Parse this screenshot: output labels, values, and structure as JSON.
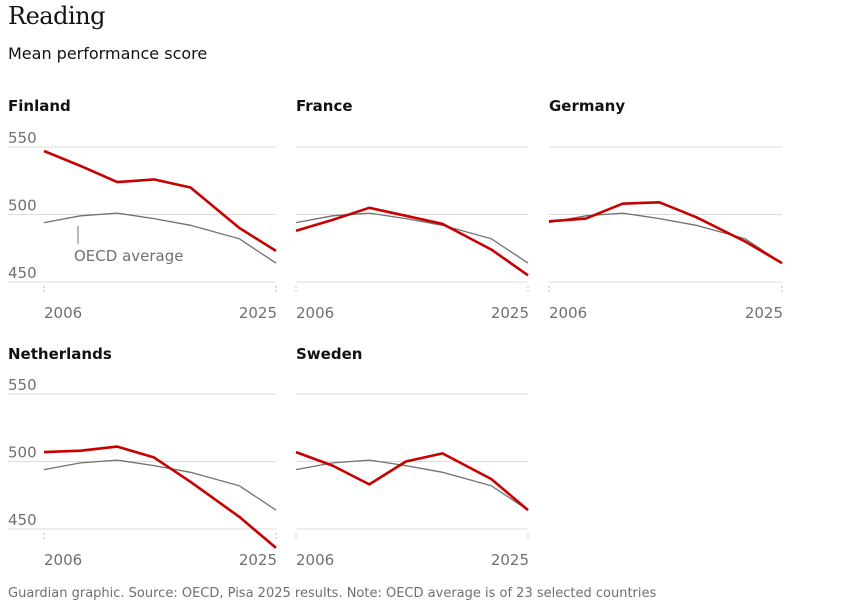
{
  "title": "Reading",
  "subtitle": "Mean performance score",
  "footer": "Guardian graphic. Source: OECD, Pisa 2025 results. Note: OECD average is of 23 selected countries",
  "colors": {
    "country": "#c70000",
    "average": "#707070",
    "grid": "#dcdcdc"
  },
  "chart_data": [
    {
      "type": "line",
      "title": "Finland",
      "x": [
        2006,
        2009,
        2012,
        2015,
        2018,
        2022,
        2025
      ],
      "ylim": [
        450,
        550
      ],
      "yticks": [
        550,
        500,
        450
      ],
      "xticks": [
        "2006",
        "2025"
      ],
      "annotation": "OECD average",
      "series": [
        {
          "name": "OECD average",
          "values": [
            494,
            499,
            501,
            497,
            492,
            482,
            464
          ]
        },
        {
          "values": [
            547,
            536,
            524,
            526,
            520,
            490,
            473
          ]
        }
      ]
    },
    {
      "type": "line",
      "title": "France",
      "x": [
        2006,
        2009,
        2012,
        2015,
        2018,
        2022,
        2025
      ],
      "ylim": [
        450,
        550
      ],
      "yticks": [
        550,
        500,
        450
      ],
      "xticks": [
        "2006",
        "2025"
      ],
      "series": [
        {
          "name": "OECD average",
          "values": [
            494,
            499,
            501,
            497,
            492,
            482,
            464
          ]
        },
        {
          "values": [
            488,
            496,
            505,
            499,
            493,
            474,
            455
          ]
        }
      ]
    },
    {
      "type": "line",
      "title": "Germany",
      "x": [
        2006,
        2009,
        2012,
        2015,
        2018,
        2022,
        2025
      ],
      "ylim": [
        450,
        550
      ],
      "yticks": [
        550,
        500,
        450
      ],
      "xticks": [
        "2006",
        "2025"
      ],
      "series": [
        {
          "name": "OECD average",
          "values": [
            494,
            499,
            501,
            497,
            492,
            482,
            464
          ]
        },
        {
          "values": [
            495,
            497,
            508,
            509,
            498,
            480,
            464
          ]
        }
      ]
    },
    {
      "type": "line",
      "title": "Netherlands",
      "x": [
        2006,
        2009,
        2012,
        2015,
        2018,
        2022,
        2025
      ],
      "ylim": [
        450,
        550
      ],
      "yticks": [
        550,
        500,
        450
      ],
      "xticks": [
        "2006",
        "2025"
      ],
      "series": [
        {
          "name": "OECD average",
          "values": [
            494,
            499,
            501,
            497,
            492,
            482,
            464
          ]
        },
        {
          "values": [
            507,
            508,
            511,
            503,
            485,
            459,
            436
          ]
        }
      ]
    },
    {
      "type": "line",
      "title": "Sweden",
      "x": [
        2006,
        2009,
        2012,
        2015,
        2018,
        2022,
        2025
      ],
      "ylim": [
        450,
        550
      ],
      "yticks": [
        550,
        500,
        450
      ],
      "xticks": [
        "2006",
        "2025"
      ],
      "series": [
        {
          "name": "OECD average",
          "values": [
            494,
            499,
            501,
            497,
            492,
            482,
            464
          ]
        },
        {
          "values": [
            507,
            497,
            483,
            500,
            506,
            487,
            464
          ]
        }
      ]
    }
  ]
}
